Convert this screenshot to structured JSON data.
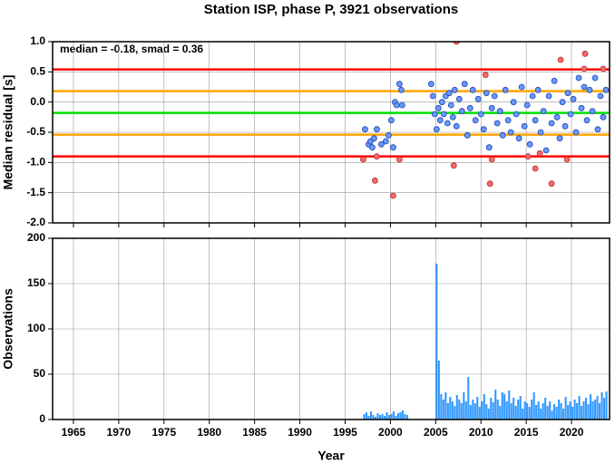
{
  "chart_data": [
    {
      "type": "scatter",
      "title": "Station ISP, phase P, 3921 observations",
      "ylabel": "Median residual [s]",
      "annotation": "median = -0.18, smad = 0.36",
      "xlim": [
        1962.7,
        2024.2
      ],
      "ylim": [
        -2.0,
        1.0
      ],
      "yticks": [
        {
          "value": -2,
          "label": "-2.0"
        },
        {
          "value": -1.5,
          "label": "-1.5"
        },
        {
          "value": -1,
          "label": "-1.0"
        },
        {
          "value": -0.5,
          "label": "-0.5"
        },
        {
          "value": 0,
          "label": "0.0"
        },
        {
          "value": 0.5,
          "label": "0.5"
        },
        {
          "value": 1,
          "label": "1.0"
        }
      ],
      "grid": true,
      "hlines": [
        {
          "value": 0.54,
          "color": "#ff0000"
        },
        {
          "value": 0.18,
          "color": "#ffa500"
        },
        {
          "value": -0.18,
          "color": "#00e000"
        },
        {
          "value": -0.54,
          "color": "#ffa500"
        },
        {
          "value": -0.9,
          "color": "#ff0000"
        }
      ],
      "series": [
        {
          "color": "#6699ff",
          "stroke": "#2244aa",
          "x": [
            1997.2,
            1997.6,
            1997.8,
            1998.0,
            1998.2,
            1998.5,
            1999.0,
            1999.5,
            1999.8,
            2000.1,
            2000.3,
            2000.5,
            2000.7,
            2001.0,
            2001.2,
            2001.3,
            2004.5,
            2004.7,
            2004.9,
            2005.1,
            2005.3,
            2005.5,
            2005.7,
            2005.9,
            2006.1,
            2006.3,
            2006.5,
            2006.7,
            2006.9,
            2007.1,
            2007.3,
            2007.6,
            2007.9,
            2008.2,
            2008.5,
            2008.8,
            2009.1,
            2009.4,
            2009.7,
            2010.0,
            2010.3,
            2010.6,
            2010.9,
            2011.2,
            2011.5,
            2011.8,
            2012.1,
            2012.4,
            2012.7,
            2013.0,
            2013.3,
            2013.6,
            2013.9,
            2014.2,
            2014.5,
            2014.8,
            2015.1,
            2015.4,
            2015.7,
            2016.0,
            2016.3,
            2016.6,
            2016.9,
            2017.2,
            2017.5,
            2017.8,
            2018.1,
            2018.4,
            2018.7,
            2019.0,
            2019.3,
            2019.6,
            2019.9,
            2020.2,
            2020.5,
            2020.8,
            2021.1,
            2021.4,
            2021.7,
            2022.0,
            2022.3,
            2022.6,
            2022.9,
            2023.2,
            2023.5,
            2023.8
          ],
          "values": [
            -0.45,
            -0.7,
            -0.65,
            -0.75,
            -0.6,
            -0.45,
            -0.7,
            -0.65,
            -0.55,
            -0.3,
            -0.75,
            0.0,
            -0.05,
            0.3,
            0.2,
            -0.05,
            0.3,
            0.1,
            -0.2,
            -0.45,
            -0.1,
            -0.3,
            0.0,
            -0.2,
            0.1,
            -0.35,
            0.15,
            -0.05,
            -0.25,
            0.2,
            -0.4,
            0.05,
            -0.15,
            0.3,
            -0.55,
            -0.1,
            0.2,
            -0.3,
            0.05,
            -0.2,
            -0.45,
            0.15,
            -0.75,
            -0.1,
            0.1,
            -0.35,
            -0.15,
            -0.55,
            0.2,
            -0.3,
            -0.5,
            0.0,
            -0.2,
            -0.6,
            0.25,
            -0.4,
            -0.05,
            -0.7,
            0.1,
            -0.3,
            0.2,
            -0.5,
            -0.15,
            -0.8,
            0.1,
            -0.35,
            0.35,
            -0.25,
            -0.6,
            0.0,
            -0.4,
            0.15,
            -0.2,
            0.05,
            -0.5,
            0.4,
            -0.1,
            0.25,
            -0.3,
            0.2,
            -0.15,
            0.4,
            -0.45,
            0.1,
            -0.25,
            0.2
          ]
        },
        {
          "color": "#ff6666",
          "stroke": "#aa3333",
          "x": [
            1997.0,
            1998.3,
            1998.5,
            2000.3,
            2001.0,
            2007.3,
            2007.0,
            2010.5,
            2011.0,
            2011.2,
            2015.2,
            2016.0,
            2016.5,
            2017.8,
            2018.8,
            2019.5,
            2021.4,
            2021.5,
            2023.5
          ],
          "values": [
            -0.95,
            -1.3,
            -0.9,
            -1.55,
            -0.95,
            1.0,
            -1.05,
            0.45,
            -1.35,
            -0.95,
            -0.9,
            -1.1,
            -0.85,
            -1.35,
            0.7,
            -0.95,
            0.55,
            0.8,
            0.55
          ]
        }
      ]
    },
    {
      "type": "bar",
      "xlabel": "Year",
      "ylabel": "Observations",
      "color": "#3399ff",
      "xlim": [
        1962.7,
        2024.2
      ],
      "ylim": [
        0,
        200
      ],
      "yticks": [
        0,
        50,
        100,
        150,
        200
      ],
      "xticks": [
        1965,
        1970,
        1975,
        1980,
        1985,
        1990,
        1995,
        2000,
        2005,
        2010,
        2015,
        2020
      ],
      "grid": true,
      "x": [
        1997,
        1997.25,
        1997.5,
        1997.75,
        1998,
        1998.25,
        1998.5,
        1998.75,
        1999,
        1999.25,
        1999.5,
        1999.75,
        2000,
        2000.25,
        2000.5,
        2000.75,
        2001,
        2001.25,
        2001.5,
        2001.75,
        2005,
        2005.25,
        2005.5,
        2005.75,
        2006,
        2006.25,
        2006.5,
        2006.75,
        2007,
        2007.25,
        2007.5,
        2007.75,
        2008,
        2008.25,
        2008.5,
        2008.75,
        2009,
        2009.25,
        2009.5,
        2009.75,
        2010,
        2010.25,
        2010.5,
        2010.75,
        2011,
        2011.25,
        2011.5,
        2011.75,
        2012,
        2012.25,
        2012.5,
        2012.75,
        2013,
        2013.25,
        2013.5,
        2013.75,
        2014,
        2014.25,
        2014.5,
        2014.75,
        2015,
        2015.25,
        2015.5,
        2015.75,
        2016,
        2016.25,
        2016.5,
        2016.75,
        2017,
        2017.25,
        2017.5,
        2017.75,
        2018,
        2018.25,
        2018.5,
        2018.75,
        2019,
        2019.25,
        2019.5,
        2019.75,
        2020,
        2020.25,
        2020.5,
        2020.75,
        2021,
        2021.25,
        2021.5,
        2021.75,
        2022,
        2022.25,
        2022.5,
        2022.75,
        2023,
        2023.25,
        2023.5,
        2023.75
      ],
      "values": [
        6,
        8,
        4,
        9,
        5,
        3,
        7,
        5,
        6,
        4,
        8,
        5,
        6,
        9,
        4,
        7,
        8,
        10,
        6,
        5,
        172,
        65,
        28,
        22,
        30,
        18,
        25,
        20,
        15,
        27,
        22,
        18,
        30,
        20,
        47,
        16,
        22,
        18,
        25,
        14,
        20,
        28,
        17,
        12,
        24,
        19,
        33,
        22,
        15,
        30,
        28,
        20,
        32,
        18,
        24,
        15,
        22,
        26,
        12,
        20,
        18,
        14,
        22,
        30,
        16,
        20,
        12,
        18,
        24,
        15,
        20,
        10,
        17,
        14,
        22,
        18,
        12,
        25,
        16,
        20,
        14,
        22,
        18,
        26,
        15,
        20,
        24,
        17,
        28,
        20,
        22,
        26,
        18,
        30,
        24,
        31
      ]
    }
  ]
}
